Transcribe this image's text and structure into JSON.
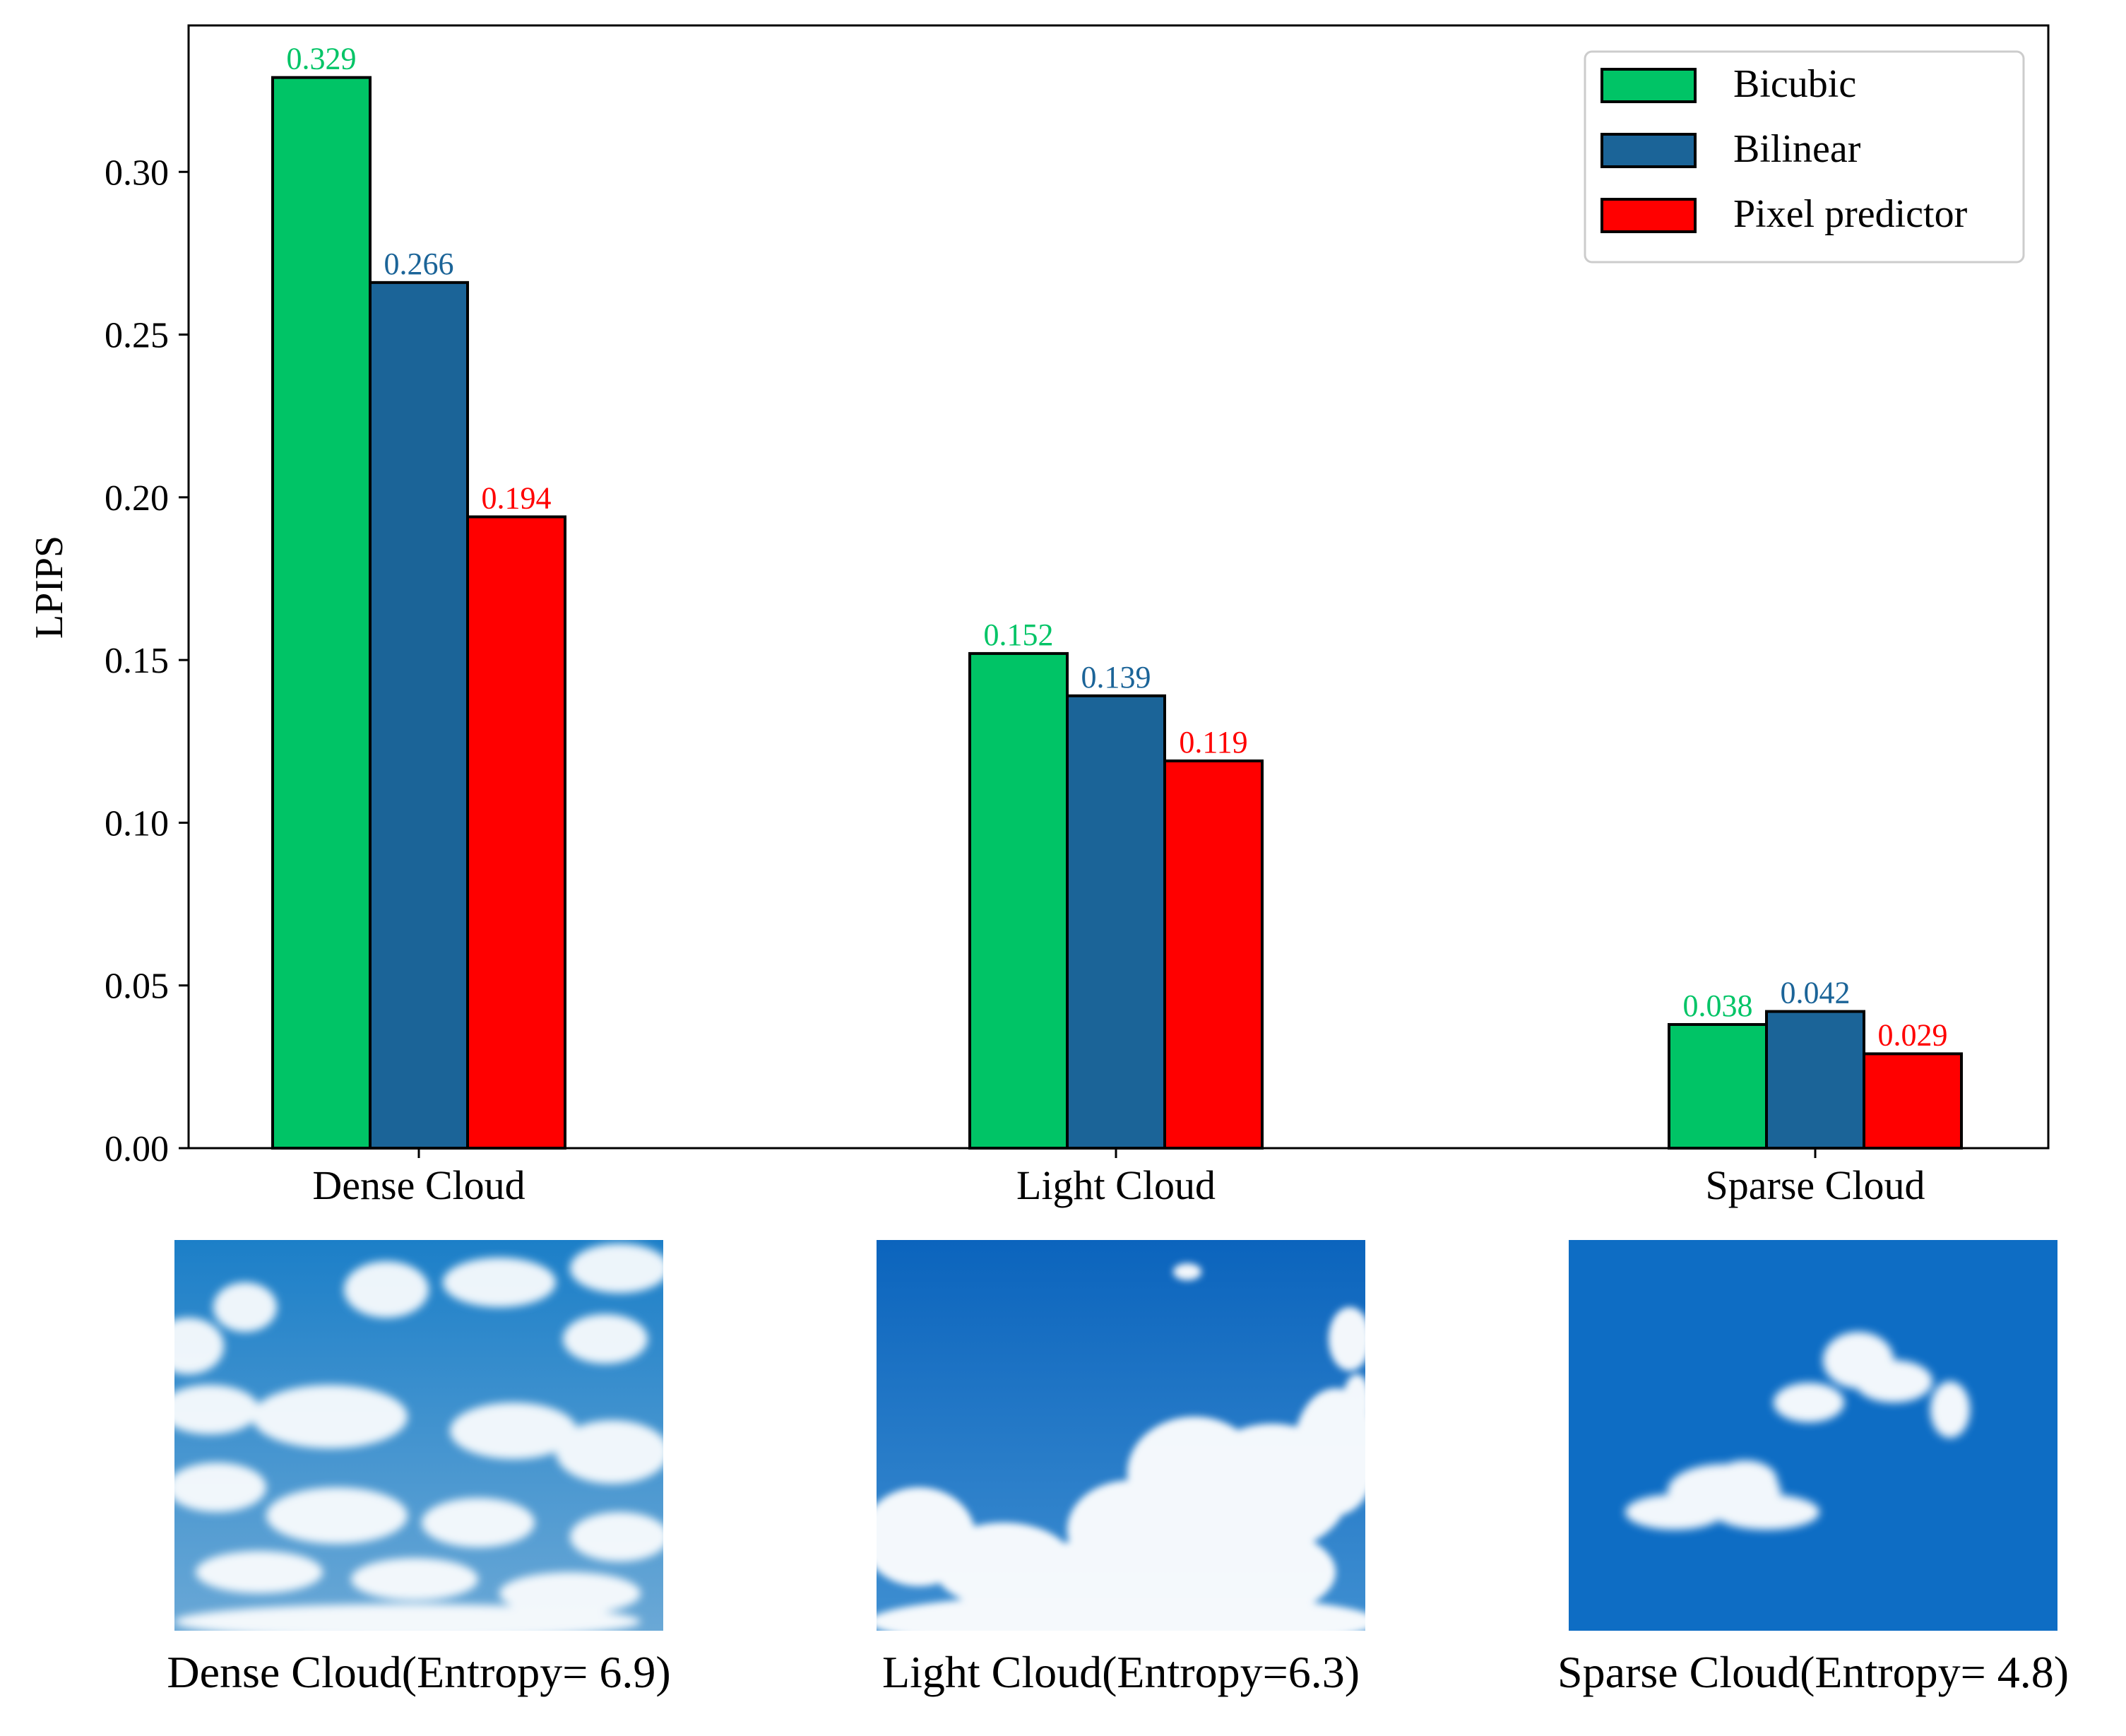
{
  "chart_data": {
    "type": "bar",
    "categories": [
      "Dense Cloud",
      "Light Cloud",
      "Sparse Cloud"
    ],
    "series": [
      {
        "name": "Bicubic",
        "values": [
          0.329,
          0.152,
          0.038
        ],
        "labels": [
          "0.329",
          "0.152",
          "0.038"
        ],
        "color": "#00c466"
      },
      {
        "name": "Bilinear",
        "values": [
          0.266,
          0.139,
          0.042
        ],
        "labels": [
          "0.266",
          "0.139",
          "0.042"
        ],
        "color": "#1b6498"
      },
      {
        "name": "Pixel predictor",
        "values": [
          0.194,
          0.119,
          0.029
        ],
        "labels": [
          "0.194",
          "0.119",
          "0.029"
        ],
        "color": "#ff0000"
      }
    ],
    "ylabel": "LPIPS",
    "ylim": [
      0,
      0.345
    ],
    "yticks": [
      "0.00",
      "0.05",
      "0.10",
      "0.15",
      "0.20",
      "0.25",
      "0.30"
    ],
    "label_colors": [
      "#00c466",
      "#1b6498",
      "#ff0000"
    ],
    "grid": false,
    "legend": "top-right"
  },
  "images": [
    {
      "name": "dense-cloud-sky",
      "caption": "Dense Cloud(Entropy= 6.9)"
    },
    {
      "name": "light-cloud-sky",
      "caption": "Light Cloud(Entropy=6.3)"
    },
    {
      "name": "sparse-cloud-sky",
      "caption": "Sparse Cloud(Entropy= 4.8)"
    }
  ]
}
